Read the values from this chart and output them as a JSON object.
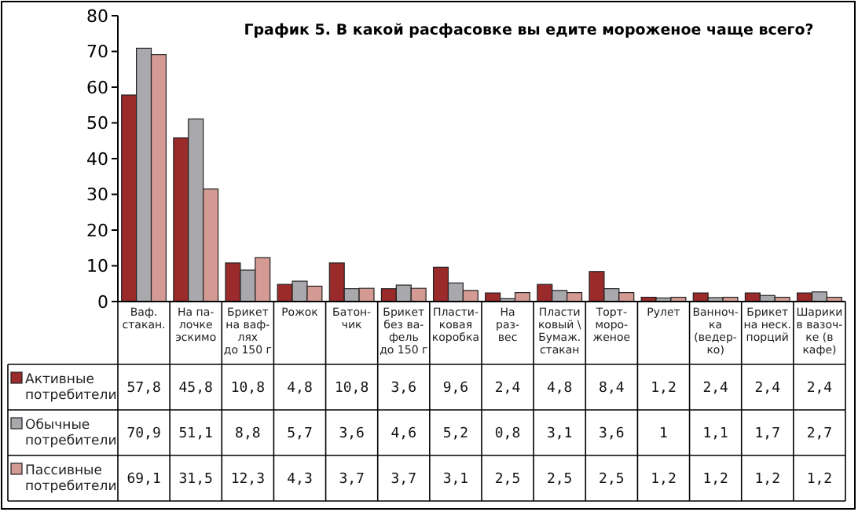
{
  "chart_data": {
    "type": "bar",
    "title": "График 5. В какой расфасовке вы едите мороженое чаще всего?",
    "categories": [
      "Ваф.\nстакан.",
      "На па-\nлочке\nэскимо",
      "Брикет\nна ваф-\nлях\nдо 150 г",
      "Рожок",
      "Батон-\nчик",
      "Брикет\nбез ва-\nфель\nдо 150 г",
      "Пласти-\nковая\nкоробка",
      "На\nраз-\nвес",
      "Пласти\nковый \\\nБумаж.\nстакан",
      "Торт-\nморо-\nженое",
      "Рулет",
      "Ванноч-\nка\n(ведер-\nко)",
      "Брикет\nна неск.\nпорций",
      "Шарики\nв вазоч-\nке (в\nкафе)"
    ],
    "series": [
      {
        "name": "Активные\nпотребители",
        "color": "#9b2a2a",
        "values": [
          57.8,
          45.8,
          10.8,
          4.8,
          10.8,
          3.6,
          9.6,
          2.4,
          4.8,
          8.4,
          1.2,
          2.4,
          2.4,
          2.4
        ],
        "value_labels": [
          "57,8",
          "45,8",
          "10,8",
          "4,8",
          "10,8",
          "3,6",
          "9,6",
          "2,4",
          "4,8",
          "8,4",
          "1,2",
          "2,4",
          "2,4",
          "2,4"
        ]
      },
      {
        "name": "Обычные\nпотребители",
        "color": "#a9a9ad",
        "values": [
          70.9,
          51.1,
          8.8,
          5.7,
          3.6,
          4.6,
          5.2,
          0.8,
          3.1,
          3.6,
          1,
          1.1,
          1.7,
          2.7
        ],
        "value_labels": [
          "70,9",
          "51,1",
          "8,8",
          "5,7",
          "3,6",
          "4,6",
          "5,2",
          "0,8",
          "3,1",
          "3,6",
          "1",
          "1,1",
          "1,7",
          "2,7"
        ]
      },
      {
        "name": "Пассивные\nпотребители",
        "color": "#d49a94",
        "values": [
          69.1,
          31.5,
          12.3,
          4.3,
          3.7,
          3.7,
          3.1,
          2.5,
          2.5,
          2.5,
          1.2,
          1.2,
          1.2,
          1.2
        ],
        "value_labels": [
          "69,1",
          "31,5",
          "12,3",
          "4,3",
          "3,7",
          "3,7",
          "3,1",
          "2,5",
          "2,5",
          "2,5",
          "1,2",
          "1,2",
          "1,2",
          "1,2"
        ]
      }
    ],
    "ylim": [
      0,
      80
    ],
    "yticks": [
      0,
      10,
      20,
      30,
      40,
      50,
      60,
      70,
      80
    ],
    "grid": false,
    "legend": "bottom"
  }
}
